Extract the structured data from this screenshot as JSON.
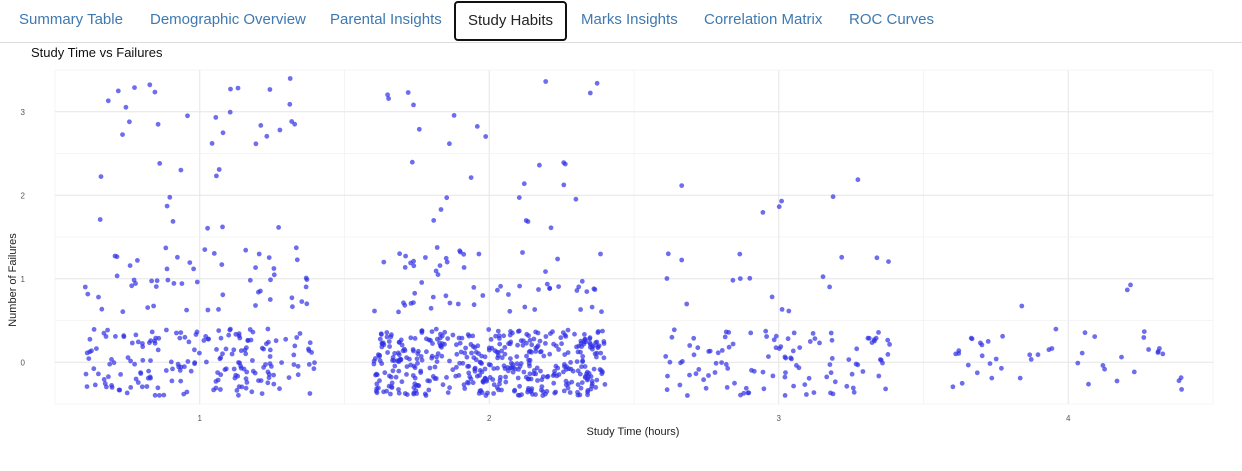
{
  "tabs": [
    {
      "label": "Summary Table",
      "active": false
    },
    {
      "label": "Demographic Overview",
      "active": false
    },
    {
      "label": "Parental Insights",
      "active": false
    },
    {
      "label": "Study Habits",
      "active": true
    },
    {
      "label": "Marks Insights",
      "active": false
    },
    {
      "label": "Correlation Matrix",
      "active": false
    },
    {
      "label": "ROC Curves",
      "active": false
    }
  ],
  "colors": {
    "tab_link": "#3f79b0",
    "point": "#2f2fe6",
    "grid": "#ebebeb"
  },
  "chart_data": {
    "type": "scatter",
    "title": "Study Time vs Failures",
    "xlabel": "Study Time (hours)",
    "ylabel": "Number of Failures",
    "x_ticks": [
      "1",
      "2",
      "3",
      "4"
    ],
    "y_ticks": [
      "0",
      "1",
      "2",
      "3"
    ],
    "xlim": [
      0.5,
      4.5
    ],
    "ylim": [
      -0.5,
      3.5
    ],
    "grid": true,
    "jittered": true,
    "point_color": "#2f2fe6",
    "groups": [
      {
        "studytime": 1,
        "counts_by_failures": {
          "0": 190,
          "1": 55,
          "2": 12,
          "3": 25
        }
      },
      {
        "studytime": 2,
        "counts_by_failures": {
          "0": 450,
          "1": 60,
          "2": 15,
          "3": 12
        }
      },
      {
        "studytime": 3,
        "counts_by_failures": {
          "0": 110,
          "1": 16,
          "2": 6,
          "3": 0
        }
      },
      {
        "studytime": 4,
        "counts_by_failures": {
          "0": 45,
          "1": 3,
          "2": 0,
          "3": 0
        }
      }
    ]
  }
}
